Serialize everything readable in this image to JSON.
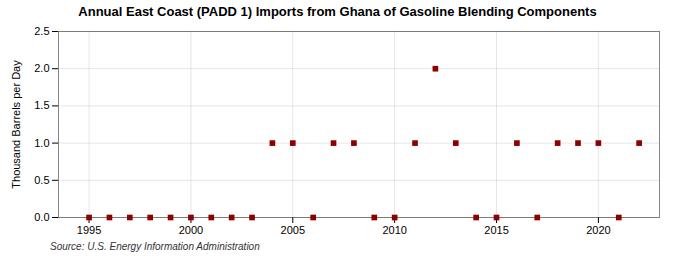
{
  "chart_data": {
    "type": "scatter",
    "title": "Annual East Coast (PADD 1) Imports from Ghana of Gasoline Blending Components",
    "ylabel": "Thousand Barrels per Day",
    "source": "Source: U.S. Energy Information Administration",
    "x": [
      1995,
      1996,
      1997,
      1998,
      1999,
      2000,
      2001,
      2002,
      2003,
      2004,
      2005,
      2006,
      2007,
      2008,
      2009,
      2010,
      2011,
      2012,
      2013,
      2014,
      2015,
      2016,
      2017,
      2018,
      2019,
      2020,
      2021,
      2022
    ],
    "values": [
      0,
      0,
      0,
      0,
      0,
      0,
      0,
      0,
      0,
      1,
      1,
      0,
      1,
      1,
      0,
      0,
      1,
      2,
      1,
      0,
      0,
      1,
      0,
      1,
      1,
      1,
      0,
      1
    ],
    "color": "#8b0000",
    "marker": "square",
    "xlim": [
      1993.5,
      2023
    ],
    "xticks": [
      1995,
      2000,
      2005,
      2010,
      2015,
      2020
    ],
    "ylim": [
      0,
      2.5
    ],
    "yticks": [
      {
        "value": 0.0,
        "label": "0.0"
      },
      0.5,
      {
        "value": 1.0,
        "label": "1.0"
      },
      1.5,
      {
        "value": 2.0,
        "label": "2.0"
      },
      2.5
    ],
    "grid": true
  }
}
